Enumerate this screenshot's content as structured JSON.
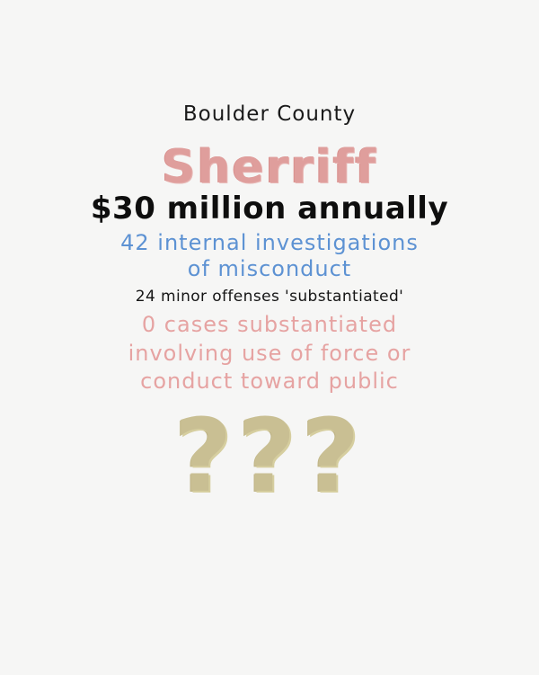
{
  "poster": {
    "county": "Boulder County",
    "title": "Sherriff",
    "budget": "$30 million annually",
    "investigations_line1": "42 internal investigations",
    "investigations_line2": "of misconduct",
    "minor_offenses": "24 minor offenses 'substantiated'",
    "zero_line1": "0 cases substantiated",
    "zero_line2": "involving use of force or",
    "zero_line3": "conduct toward public",
    "questions": "???"
  },
  "colors": {
    "background": "#f6f6f5",
    "black": "#111111",
    "pink": "#df9e9c",
    "blue": "#5d92d3",
    "khaki": "#c9bf93"
  }
}
